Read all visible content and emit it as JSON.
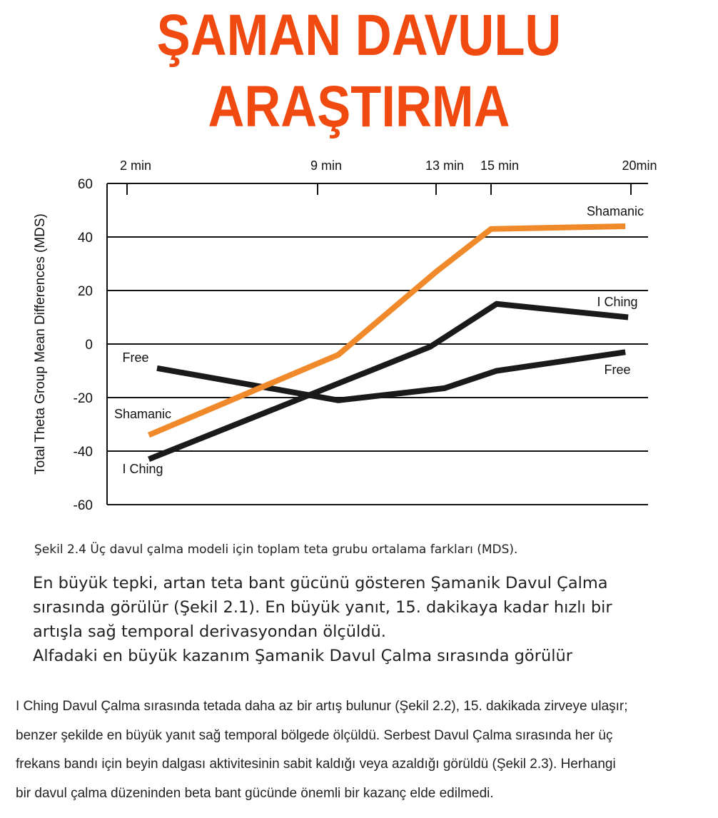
{
  "title": {
    "line1": "ŞAMAN DAVULU",
    "line2": "ARAŞTIRMA",
    "color": "#f04a10"
  },
  "chart_data": {
    "type": "line",
    "title": "",
    "xlabel": "",
    "ylabel": "Total Theta Group Mean Differences (MDS)",
    "x_ticks": [
      2,
      9,
      13,
      15,
      20
    ],
    "x_tick_labels": [
      "2 min",
      "9 min",
      "13 min",
      "15 min",
      "20min"
    ],
    "x_axis_position": "top",
    "ylim": [
      -60,
      60
    ],
    "y_ticks": [
      60,
      40,
      20,
      0,
      -20,
      -40,
      -60
    ],
    "y_tick_labels": [
      "60",
      "40",
      "20",
      "0",
      "-20",
      "-40",
      "-60"
    ],
    "grid": "horizontal",
    "series": [
      {
        "name": "Shamanic",
        "color": "#f0892a",
        "x": [
          2.8,
          9.7,
          13.0,
          15.0,
          19.8
        ],
        "y": [
          -34,
          -4,
          27,
          43,
          44
        ]
      },
      {
        "name": "I Ching",
        "color": "#1a1a1a",
        "x": [
          2.8,
          12.8,
          15.2,
          19.9
        ],
        "y": [
          -43,
          -1,
          15,
          10
        ]
      },
      {
        "name": "Free",
        "color": "#1a1a1a",
        "x": [
          3.1,
          9.7,
          13.3,
          15.2,
          19.8
        ],
        "y": [
          -9,
          -21,
          -16.5,
          -10,
          -3
        ]
      }
    ]
  },
  "caption": "Şekil 2.4 Üç davul çalma modeli için toplam teta grubu ortalama farkları (MDS).",
  "paragraph1": [
    "En büyük tepki, artan teta bant gücünü gösteren Şamanik Davul Çalma",
    "sırasında görülür (Şekil 2.1). En büyük yanıt, 15. dakikaya kadar hızlı bir",
    "artışla sağ temporal derivasyondan ölçüldü.",
    "Alfadaki en büyük kazanım Şamanik Davul Çalma sırasında görülür"
  ],
  "paragraph2": [
    "I Ching Davul Çalma sırasında tetada daha az bir artış bulunur (Şekil 2.2), 15. dakikada zirveye ulaşır;",
    "benzer şekilde en büyük yanıt sağ temporal bölgede ölçüldü. Serbest Davul Çalma sırasında her üç",
    "frekans bandı için beyin dalgası aktivitesinin sabit kaldığı veya azaldığı görüldü (Şekil 2.3). Herhangi",
    "bir davul çalma düzeninden beta bant gücünde önemli bir kazanç elde edilmedi."
  ]
}
